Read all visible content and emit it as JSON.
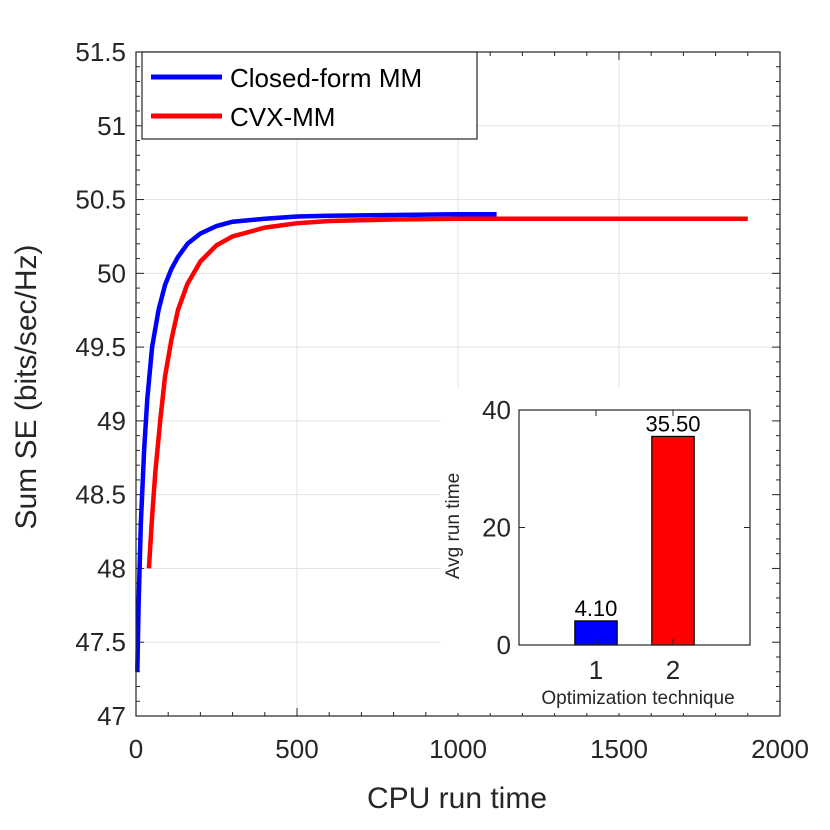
{
  "chart_data": [
    {
      "type": "line",
      "xlabel": "CPU run time",
      "ylabel": "Sum SE (bits/sec/Hz)",
      "xlim": [
        0,
        2000
      ],
      "ylim": [
        47,
        51.5
      ],
      "xticks": [
        0,
        500,
        1000,
        1500,
        2000
      ],
      "xtick_labels": [
        "0",
        "500",
        "1000",
        "1500",
        "2000"
      ],
      "yticks": [
        47,
        47.5,
        48,
        48.5,
        49,
        49.5,
        50,
        50.5,
        51,
        51.5
      ],
      "ytick_labels": [
        "47",
        "47.5",
        "48",
        "48.5",
        "49",
        "49.5",
        "50",
        "50.5",
        "51",
        "51.5"
      ],
      "grid": true,
      "legend_position": "top-left",
      "series": [
        {
          "name": "Closed-form MM",
          "color": "#0000ff",
          "x": [
            4,
            8,
            15,
            25,
            35,
            50,
            70,
            90,
            110,
            130,
            160,
            200,
            250,
            300,
            400,
            500,
            600,
            800,
            1000,
            1120
          ],
          "y": [
            47.3,
            47.75,
            48.3,
            48.8,
            49.15,
            49.5,
            49.75,
            49.92,
            50.03,
            50.11,
            50.2,
            50.27,
            50.32,
            50.35,
            50.37,
            50.385,
            50.39,
            50.395,
            50.4,
            50.4
          ]
        },
        {
          "name": "CVX-MM",
          "color": "#ff0000",
          "x": [
            40,
            50,
            60,
            75,
            90,
            110,
            130,
            160,
            200,
            250,
            300,
            400,
            500,
            600,
            800,
            1000,
            1200,
            1500,
            1900
          ],
          "y": [
            48.0,
            48.35,
            48.65,
            49.0,
            49.3,
            49.55,
            49.75,
            49.93,
            50.08,
            50.19,
            50.25,
            50.31,
            50.34,
            50.355,
            50.365,
            50.37,
            50.37,
            50.37,
            50.37
          ]
        }
      ]
    },
    {
      "type": "bar",
      "xlabel": "Optimization technique",
      "ylabel": "Avg run time",
      "categories": [
        "1",
        "2"
      ],
      "values": [
        4.1,
        35.5
      ],
      "value_labels": [
        "4.10",
        "35.50"
      ],
      "colors": [
        "#0000ff",
        "#ff0000"
      ],
      "ylim": [
        0,
        40
      ],
      "yticks": [
        0,
        20,
        40
      ],
      "ytick_labels": [
        "0",
        "20",
        "40"
      ],
      "xlim": [
        0,
        3
      ]
    }
  ]
}
